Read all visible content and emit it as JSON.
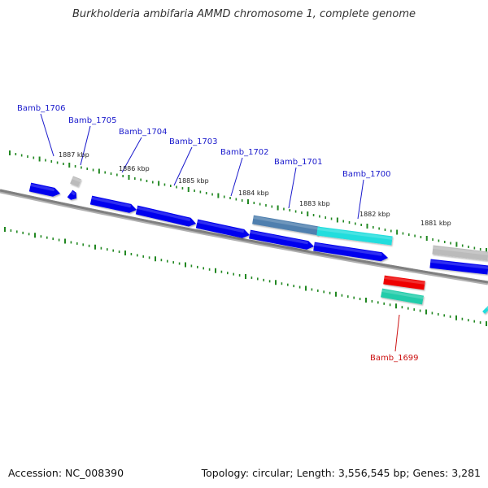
{
  "title": "Burkholderia ambifaria AMMD chromosome 1, complete genome",
  "accession_text": "Accession: NC_008390",
  "summary_text": "Topology: circular; Length: 3,556,545 bp; Genes: 3,281",
  "colors": {
    "gene_label": "#1a1acc",
    "highlight_label": "#cc1111",
    "tick": "#228822",
    "backbone": "#808080",
    "gene_forward": "#0000ee",
    "gene_light": "#bbbbbb",
    "gene_cyan": "#22dddd",
    "gene_steel": "#4f7fae",
    "gene_red": "#ee0000",
    "gene_green": "#22ccaa"
  },
  "position_labels": [
    "1887 kbp",
    "1886 kbp",
    "1885 kbp",
    "1884 kbp",
    "1883 kbp",
    "1882 kbp",
    "1881 kbp"
  ],
  "gene_labels": [
    {
      "name": "Bamb_1706",
      "color": "gene_label"
    },
    {
      "name": "Bamb_1705",
      "color": "gene_label"
    },
    {
      "name": "Bamb_1704",
      "color": "gene_label"
    },
    {
      "name": "Bamb_1703",
      "color": "gene_label"
    },
    {
      "name": "Bamb_1702",
      "color": "gene_label"
    },
    {
      "name": "Bamb_1701",
      "color": "gene_label"
    },
    {
      "name": "Bamb_1700",
      "color": "gene_label"
    },
    {
      "name": "Bamb_1699",
      "color": "highlight_label"
    }
  ]
}
